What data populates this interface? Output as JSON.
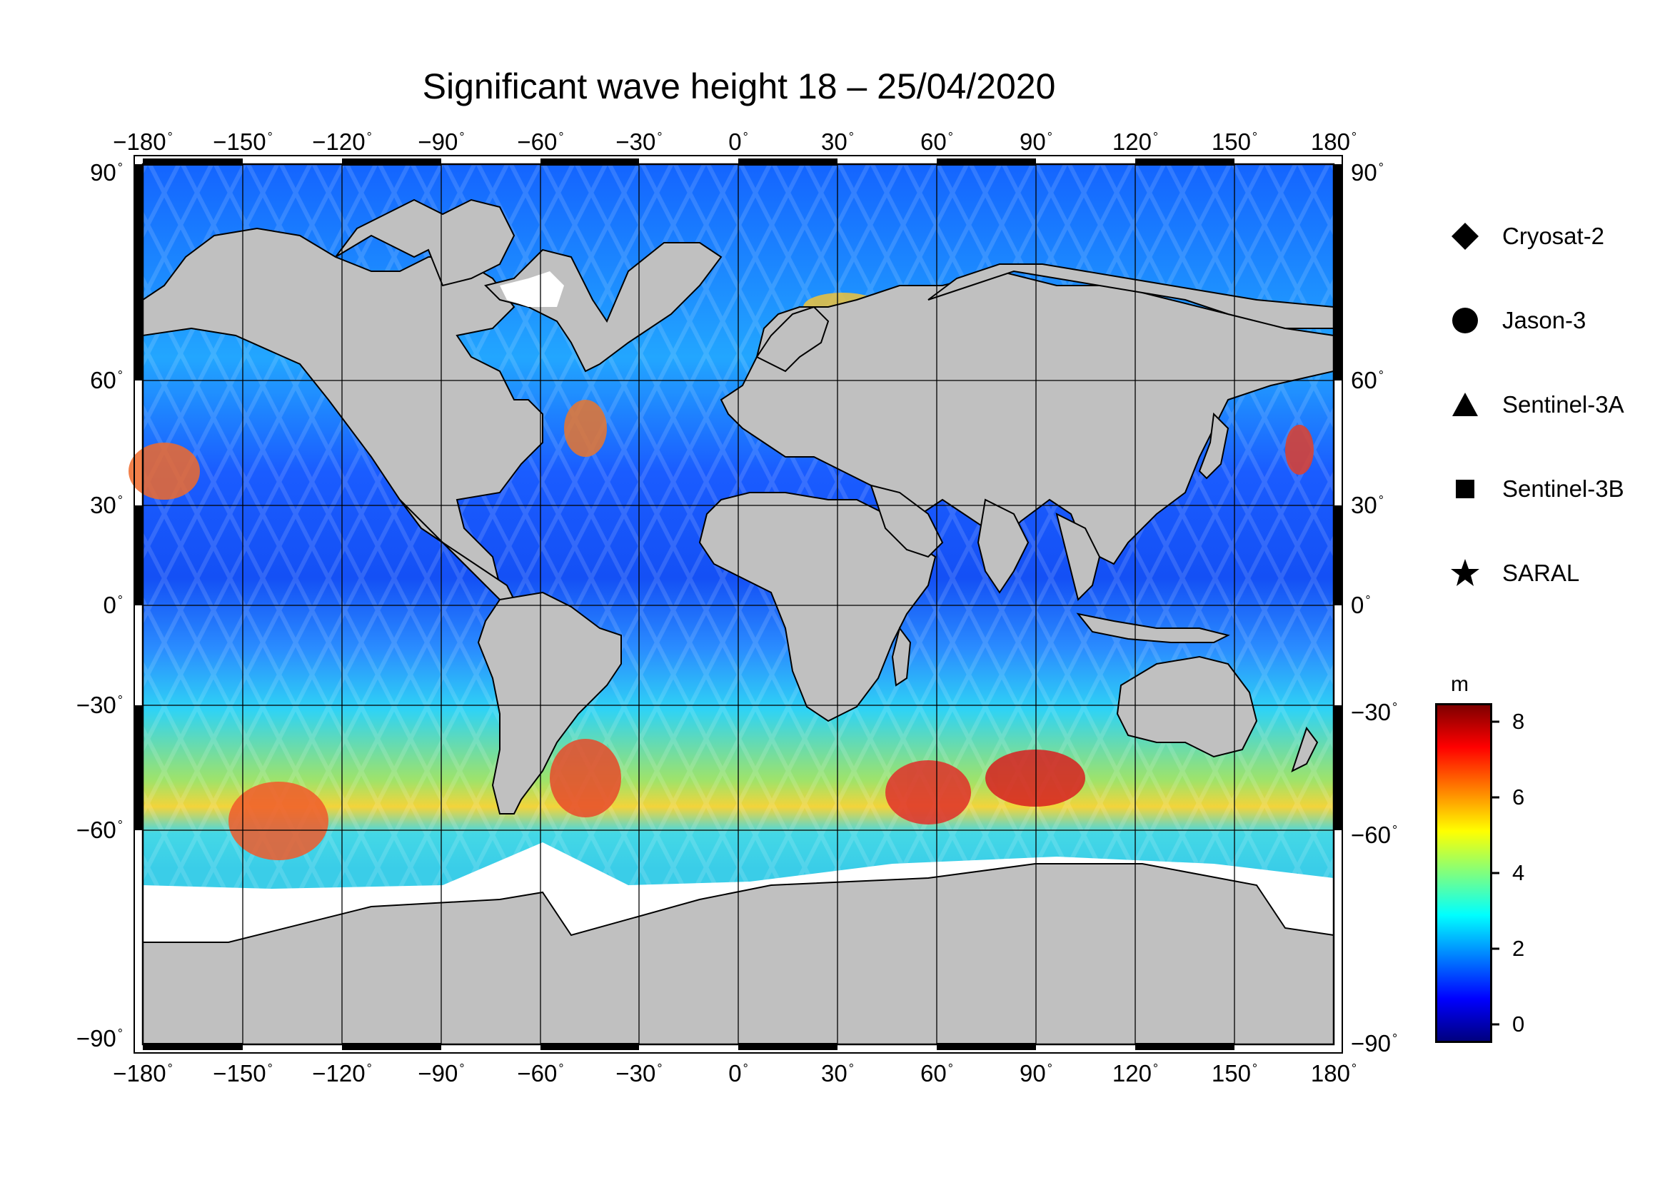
{
  "title": "Significant wave height 18 – 25/04/2020",
  "map": {
    "lon_ticks": [
      "−180",
      "−150",
      "−120",
      "−90",
      "−60",
      "−30",
      "0",
      "30",
      "60",
      "90",
      "120",
      "150",
      "180"
    ],
    "lat_ticks": [
      "90",
      "60",
      "30",
      "0",
      "−30",
      "−60",
      "−90"
    ],
    "degree_symbol": "°",
    "land_color": "#c0c0c0",
    "ice_color": "#ffffff"
  },
  "legend": {
    "items": [
      {
        "label": "Cryosat-2",
        "symbol": "diamond-icon"
      },
      {
        "label": "Jason-3",
        "symbol": "circle-icon"
      },
      {
        "label": "Sentinel-3A",
        "symbol": "triangle-icon"
      },
      {
        "label": "Sentinel-3B",
        "symbol": "square-icon"
      },
      {
        "label": "SARAL",
        "symbol": "star-icon"
      }
    ]
  },
  "colorbar": {
    "unit": "m",
    "ticks": [
      "8",
      "6",
      "4",
      "2",
      "0"
    ],
    "range": [
      -0.5,
      8.5
    ],
    "colors": [
      "#00007f",
      "#0000ff",
      "#007fff",
      "#00ffff",
      "#7fff7f",
      "#ffff00",
      "#ff7f00",
      "#ff0000",
      "#7f0000"
    ]
  }
}
